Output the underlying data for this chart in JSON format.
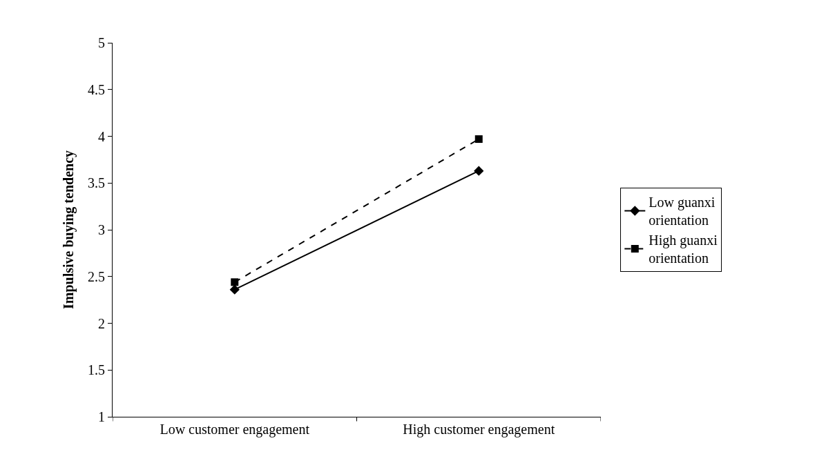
{
  "chart_data": {
    "type": "line",
    "ylabel": "Impulsive buying tendency",
    "categories": [
      "Low customer engagement",
      "High customer engagement"
    ],
    "series": [
      {
        "name": "Low guanxi orientation",
        "color": "#000000",
        "values": [
          2.36,
          3.63
        ],
        "marker": "diamond",
        "line_style": "solid"
      },
      {
        "name": "High guanxi orientation",
        "color": "#000000",
        "values": [
          2.44,
          3.97
        ],
        "marker": "square",
        "line_style": "dashed"
      }
    ],
    "ylim": [
      1,
      5
    ],
    "yticks": [
      1,
      1.5,
      2,
      2.5,
      3,
      3.5,
      4,
      4.5,
      5
    ],
    "legend": "right"
  }
}
